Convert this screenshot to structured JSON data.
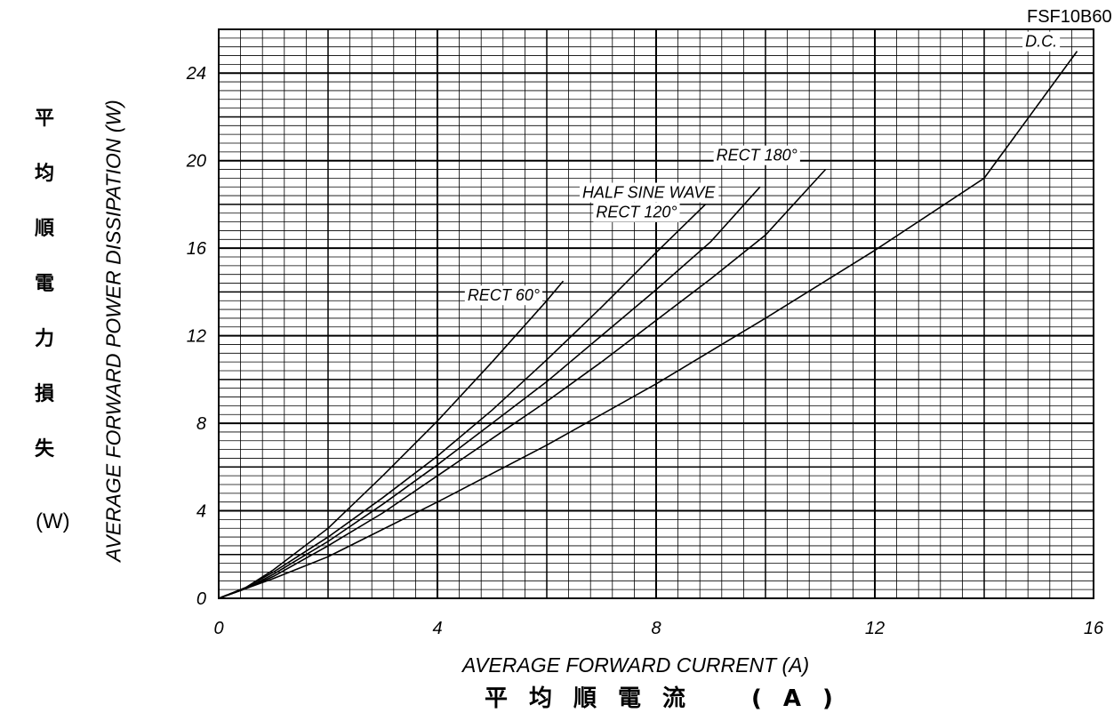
{
  "header": {
    "part_number": "FSF10B60"
  },
  "y_axis_japanese": [
    "平",
    "均",
    "順",
    "電",
    "力",
    "損",
    "失"
  ],
  "y_unit_japanese": "(W)",
  "x_axis_japanese": "平均順電流　(A)",
  "chart_data": {
    "type": "line",
    "xlabel": "AVERAGE FORWARD CURRENT (A)",
    "ylabel": "AVERAGE FORWARD POWER DISSIPATION (W)",
    "xlim": [
      0,
      16
    ],
    "ylim": [
      0,
      26
    ],
    "x_ticks": [
      "0",
      "4",
      "8",
      "12",
      "16"
    ],
    "y_ticks": [
      "0",
      "4",
      "8",
      "12",
      "16",
      "20",
      "24"
    ],
    "grid": true,
    "series": [
      {
        "name": "RECT 60°",
        "x": [
          0,
          0.5,
          1,
          2,
          3,
          4,
          5,
          6,
          6.3
        ],
        "y": [
          0,
          0.5,
          1.3,
          3.2,
          5.6,
          8.1,
          10.8,
          13.6,
          14.5
        ]
      },
      {
        "name": "RECT 120°",
        "x": [
          0,
          0.5,
          1,
          2,
          3,
          4,
          5,
          6,
          7,
          8,
          8.9
        ],
        "y": [
          0,
          0.5,
          1.2,
          2.8,
          4.6,
          6.5,
          8.6,
          10.9,
          13.3,
          15.8,
          18.0
        ]
      },
      {
        "name": "HALF SINE WAVE",
        "x": [
          0,
          0.5,
          1,
          2,
          3,
          4,
          5,
          6,
          7,
          8,
          9,
          9.9
        ],
        "y": [
          0,
          0.45,
          1.1,
          2.6,
          4.3,
          6.1,
          8.0,
          9.9,
          12.0,
          14.1,
          16.3,
          18.8
        ]
      },
      {
        "name": "RECT 180°",
        "x": [
          0,
          0.5,
          1,
          2,
          3,
          4,
          5,
          6,
          7,
          8,
          9,
          10,
          11.1
        ],
        "y": [
          0,
          0.45,
          1.0,
          2.4,
          3.9,
          5.6,
          7.3,
          9.0,
          10.8,
          12.7,
          14.6,
          16.6,
          19.6
        ]
      },
      {
        "name": "D.C.",
        "x": [
          0,
          1,
          2,
          4,
          6,
          8,
          10,
          12,
          14,
          15.7
        ],
        "y": [
          0,
          0.9,
          1.9,
          4.4,
          7.0,
          9.8,
          12.8,
          15.9,
          19.2,
          25.0
        ]
      }
    ],
    "annotations": [
      "RECT 60°",
      "RECT 120°",
      "HALF SINE WAVE",
      "RECT 180°",
      "D.C."
    ]
  }
}
